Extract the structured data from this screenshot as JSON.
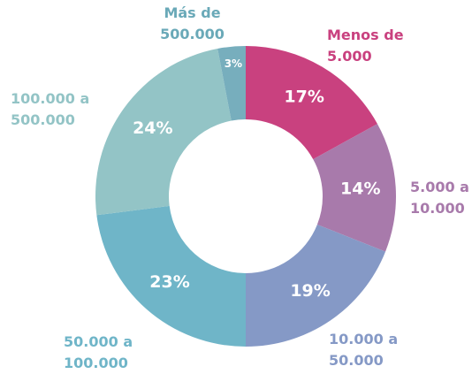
{
  "chart_data": {
    "type": "donut",
    "categories": [
      "Menos de 5.000",
      "5.000 a 10.000",
      "10.000 a 50.000",
      "50.000 a 100.000",
      "100.000 a 500.000",
      "Más de 500.000"
    ],
    "values": [
      17,
      14,
      19,
      23,
      24,
      3
    ],
    "value_labels": [
      "17%",
      "14%",
      "19%",
      "23%",
      "24%",
      "3%"
    ],
    "colors": [
      "#c9417f",
      "#a87aab",
      "#8599c6",
      "#6fb5c8",
      "#93c4c6",
      "#77aebd"
    ]
  }
}
